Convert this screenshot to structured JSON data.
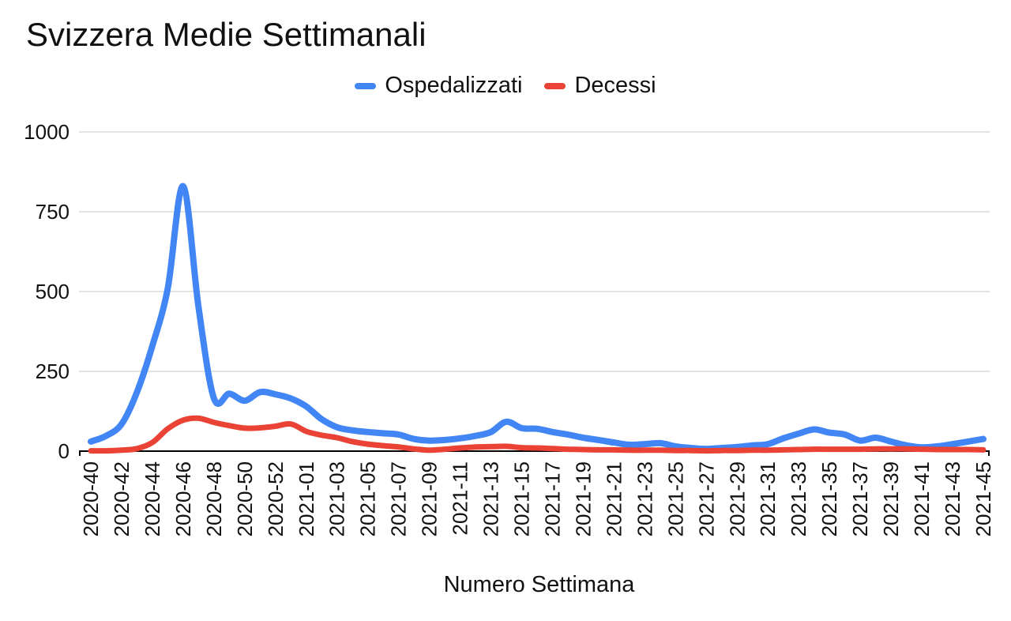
{
  "chart_data": {
    "type": "line",
    "title": "Svizzera Medie Settimanali",
    "xlabel": "Numero Settimana",
    "ylabel": "",
    "ylim": [
      0,
      1000
    ],
    "yticks": [
      0,
      250,
      500,
      750,
      1000
    ],
    "grid": true,
    "legend_position": "top",
    "x_tick_every": 2,
    "x": [
      "2020-40",
      "2020-41",
      "2020-42",
      "2020-43",
      "2020-44",
      "2020-45",
      "2020-46",
      "2020-47",
      "2020-48",
      "2020-49",
      "2020-50",
      "2020-51",
      "2020-52",
      "2020-53",
      "2021-01",
      "2021-02",
      "2021-03",
      "2021-04",
      "2021-05",
      "2021-06",
      "2021-07",
      "2021-08",
      "2021-09",
      "2021-10",
      "2021-11",
      "2021-12",
      "2021-13",
      "2021-14",
      "2021-15",
      "2021-16",
      "2021-17",
      "2021-18",
      "2021-19",
      "2021-20",
      "2021-21",
      "2021-22",
      "2021-23",
      "2021-24",
      "2021-25",
      "2021-26",
      "2021-27",
      "2021-28",
      "2021-29",
      "2021-30",
      "2021-31",
      "2021-32",
      "2021-33",
      "2021-34",
      "2021-35",
      "2021-36",
      "2021-37",
      "2021-38",
      "2021-39",
      "2021-40",
      "2021-41",
      "2021-42",
      "2021-43",
      "2021-44",
      "2021-45"
    ],
    "series": [
      {
        "name": "Ospedalizzati",
        "color": "#4285F4",
        "values": [
          30,
          48,
          85,
          185,
          330,
          510,
          830,
          450,
          165,
          180,
          158,
          185,
          178,
          165,
          140,
          100,
          75,
          65,
          60,
          56,
          52,
          38,
          33,
          35,
          40,
          48,
          60,
          92,
          72,
          70,
          60,
          52,
          42,
          35,
          27,
          20,
          22,
          25,
          15,
          10,
          7,
          10,
          13,
          18,
          22,
          40,
          55,
          68,
          58,
          52,
          33,
          42,
          30,
          18,
          12,
          15,
          22,
          30,
          38
        ]
      },
      {
        "name": "Decessi",
        "color": "#EA4335",
        "values": [
          1,
          1,
          3,
          8,
          27,
          70,
          97,
          103,
          90,
          80,
          72,
          73,
          78,
          85,
          62,
          50,
          42,
          30,
          22,
          17,
          13,
          7,
          3,
          6,
          10,
          13,
          14,
          15,
          11,
          10,
          8,
          6,
          5,
          4,
          4,
          3,
          3,
          3,
          2,
          2,
          1,
          2,
          2,
          3,
          3,
          4,
          5,
          6,
          6,
          6,
          6,
          7,
          7,
          7,
          6,
          5,
          5,
          5,
          4
        ]
      }
    ],
    "colors": {
      "gridline": "#e2e2e2",
      "axis": "#000000",
      "text": "#111111"
    }
  }
}
